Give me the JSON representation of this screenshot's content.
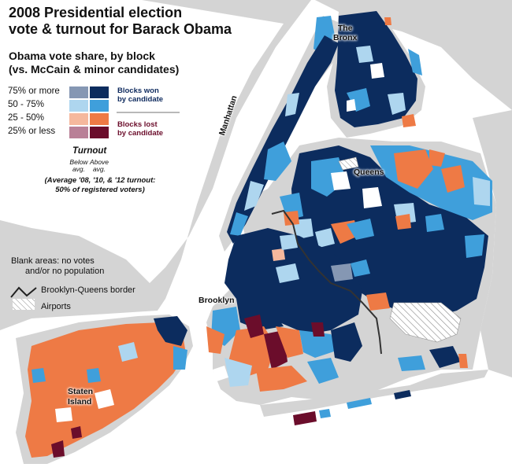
{
  "title_line1": "2008 Presidential election",
  "title_line2": "vote & turnout for Barack Obama",
  "subtitle_line1": "Obama vote share, by block",
  "subtitle_line2": "(vs. McCain & minor candidates)",
  "legend": {
    "rows": [
      {
        "label": "75% or more",
        "below": "#8597b3",
        "above": "#0c2c5e"
      },
      {
        "label": "50 - 75%",
        "below": "#aed6ef",
        "above": "#3f9fdb"
      },
      {
        "label": "25 - 50%",
        "below": "#f5b89d",
        "above": "#ee7a45"
      },
      {
        "label": "25% or less",
        "below": "#b98097",
        "above": "#6b0d2b"
      }
    ],
    "won_line1": "Blocks won",
    "won_line2": "by candidate",
    "lost_line1": "Blocks lost",
    "lost_line2": "by candidate",
    "turnout_title": "Turnout",
    "below_line1": "Below",
    "below_line2": "avg.",
    "above_line1": "Above",
    "above_line2": "avg.",
    "turnout_note_line1": "(Average '08, '10, & '12 turnout:",
    "turnout_note_line2": "50% of registered voters)",
    "blank_line1": "Blank areas: no votes",
    "blank_line2": "and/or no population",
    "border_label": "Brooklyn-Queens border",
    "airports_label": "Airports"
  },
  "boroughs": {
    "bronx_line1": "The",
    "bronx_line2": "Bronx",
    "manhattan": "Manhattan",
    "queens": "Queens",
    "brooklyn": "Brooklyn",
    "staten_line1": "Staten",
    "staten_line2": "Island"
  },
  "colors": {
    "water": "#ffffff",
    "land": "#d4d4d4",
    "dark_blue": "#0c2c5e",
    "mid_blue": "#3f9fdb",
    "light_blue": "#aed6ef",
    "orange": "#ee7a45",
    "maroon": "#6b0d2b"
  }
}
